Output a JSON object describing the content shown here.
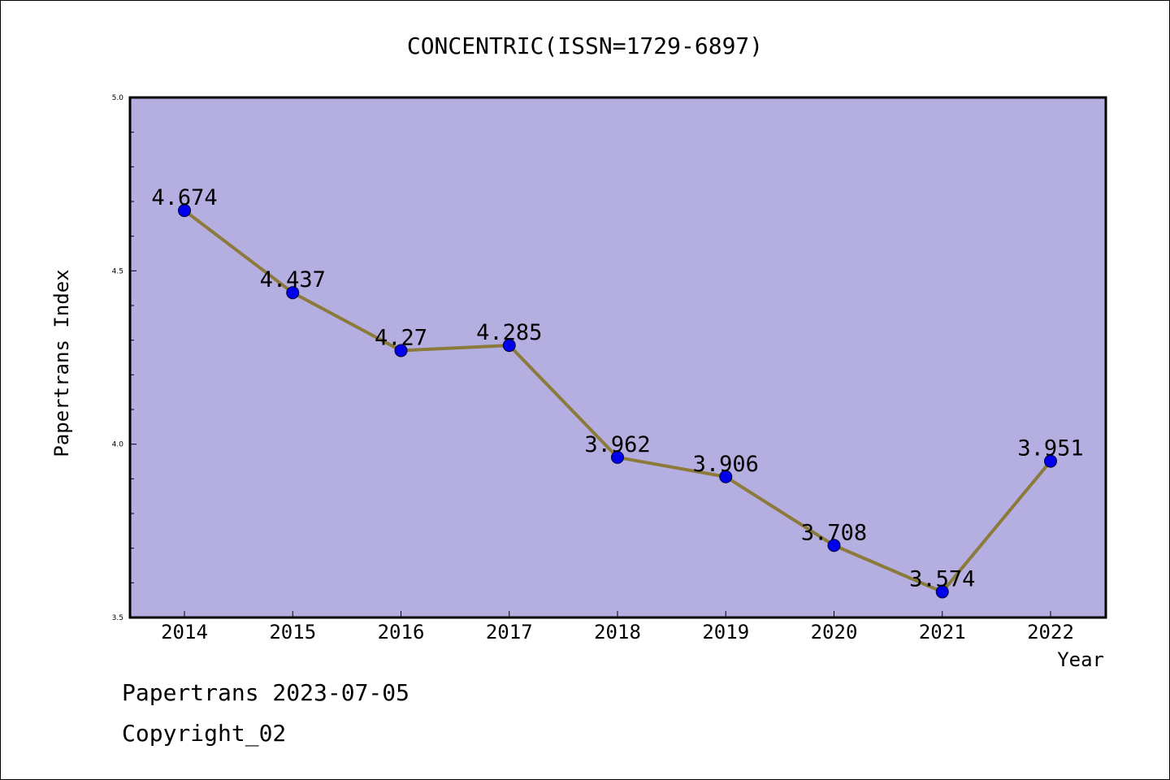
{
  "chart_data": {
    "type": "line",
    "title": "CONCENTRIC(ISSN=1729-6897)",
    "xlabel": "Year",
    "ylabel": "Papertrans Index",
    "x": [
      "2014",
      "2015",
      "2016",
      "2017",
      "2018",
      "2019",
      "2020",
      "2021",
      "2022"
    ],
    "series": [
      {
        "values": [
          4.674,
          4.437,
          4.27,
          4.285,
          3.962,
          3.906,
          3.708,
          3.574,
          3.951
        ],
        "labels": [
          "4.674",
          "4.437",
          "4.27",
          "4.285",
          "3.962",
          "3.906",
          "3.708",
          "3.574",
          "3.951"
        ]
      }
    ],
    "ylim": [
      3.5,
      5.0
    ],
    "yticks": [
      "3.5",
      "4.0",
      "4.5",
      "5.0"
    ],
    "grid": false,
    "colors": {
      "plot_background": "#b4aee1",
      "line": "#8b7a3a",
      "marker": "#0000ee"
    }
  },
  "footer": {
    "date_line": "Papertrans 2023-07-05",
    "copyright": "Copyright_02"
  }
}
